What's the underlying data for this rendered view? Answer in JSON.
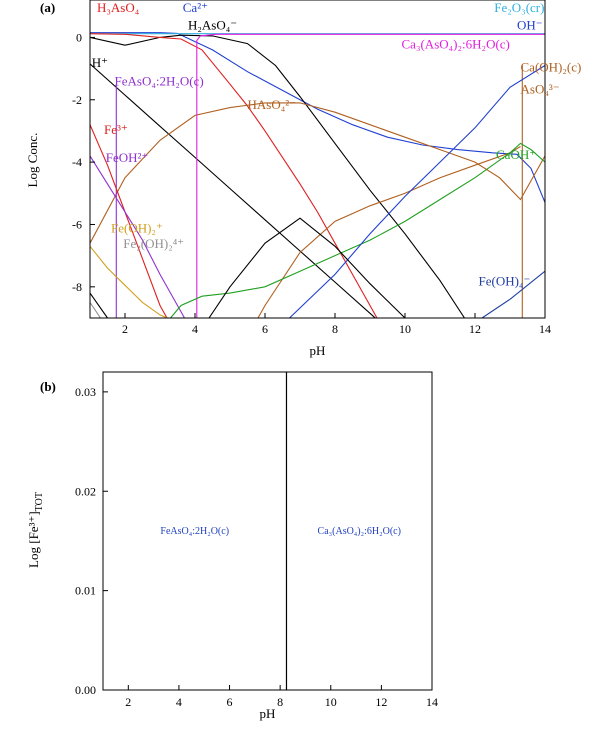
{
  "chart_data": [
    {
      "type": "line",
      "panel_label": "(a)",
      "xlabel": "pH",
      "ylabel": "Log Conc.",
      "xlim": [
        1,
        14
      ],
      "ylim": [
        -9,
        1.2
      ],
      "xticks": [
        "2",
        "4",
        "6",
        "8",
        "10",
        "12",
        "14"
      ],
      "yticks": [
        "0",
        "-2",
        "-4",
        "-6",
        "-8"
      ],
      "species_labels": [
        {
          "text": "H₃AsO₄",
          "color": "#e02020",
          "x": 1.2,
          "y": 0.82
        },
        {
          "text": "Ca²⁺",
          "color": "#2040d0",
          "x": 3.65,
          "y": 0.82
        },
        {
          "text": "H₂AsO₄⁻",
          "color": "#000000",
          "x": 3.8,
          "y": 0.25
        },
        {
          "text": "Fe₂O₃(cr)",
          "color": "#30b0e0",
          "x": 12.55,
          "y": 0.82
        },
        {
          "text": "OH⁻",
          "color": "#2040d0",
          "x": 13.2,
          "y": 0.25
        },
        {
          "text": "H⁺",
          "color": "#000000",
          "x": 1.05,
          "y": -0.95
        },
        {
          "text": "Ca₃(AsO₄)₂:6H₂O(c)",
          "color": "#e020e0",
          "x": 9.9,
          "y": -0.35
        },
        {
          "text": "FeAsO₄:2H₂O(c)",
          "color": "#9030d0",
          "x": 1.7,
          "y": -1.55
        },
        {
          "text": "Ca(OH)₂(c)",
          "color": "#b06020",
          "x": 13.3,
          "y": -1.1
        },
        {
          "text": "AsO₄³⁻",
          "color": "#b06020",
          "x": 13.3,
          "y": -1.8
        },
        {
          "text": "HAsO₄²⁻",
          "color": "#b06020",
          "x": 5.5,
          "y": -2.3
        },
        {
          "text": "Fe³⁺",
          "color": "#e02020",
          "x": 1.4,
          "y": -3.1
        },
        {
          "text": "CaOH⁺",
          "color": "#20a020",
          "x": 12.6,
          "y": -3.9
        },
        {
          "text": "FeOH²⁺",
          "color": "#9030d0",
          "x": 1.45,
          "y": -4.0
        },
        {
          "text": "Fe(OH)₂⁺",
          "color": "#d0a020",
          "x": 1.6,
          "y": -6.25
        },
        {
          "text": "Fe₂(OH)₂⁴⁺",
          "color": "#909090",
          "x": 1.95,
          "y": -6.75
        },
        {
          "text": "Fe(OH)₄⁻",
          "color": "#2040a0",
          "x": 12.1,
          "y": -7.95
        }
      ],
      "series": [
        {
          "color": "#2040d0",
          "points": [
            [
              1,
              0.15
            ],
            [
              2,
              0.15
            ],
            [
              3,
              0.15
            ],
            [
              3.5,
              0.13
            ],
            [
              4.5,
              -0.4
            ],
            [
              5.5,
              -1.1
            ],
            [
              6.5,
              -1.7
            ],
            [
              7.5,
              -2.3
            ],
            [
              8.5,
              -2.8
            ],
            [
              9.5,
              -3.2
            ],
            [
              10.5,
              -3.45
            ],
            [
              11.5,
              -3.6
            ],
            [
              12.5,
              -3.7
            ],
            [
              13.2,
              -3.75
            ],
            [
              13.6,
              -4.2
            ],
            [
              14,
              -5.3
            ]
          ]
        },
        {
          "color": "#30b0e0",
          "points": [
            [
              1,
              0.12
            ],
            [
              14,
              0.12
            ]
          ]
        },
        {
          "color": "#000000",
          "points": [
            [
              1,
              -0.85
            ],
            [
              2,
              -1.85
            ],
            [
              3,
              -2.85
            ],
            [
              4,
              -3.85
            ],
            [
              5,
              -4.85
            ],
            [
              6,
              -5.85
            ],
            [
              7,
              -6.85
            ],
            [
              8,
              -7.85
            ],
            [
              9,
              -8.85
            ],
            [
              9.15,
              -9
            ]
          ]
        },
        {
          "color": "#000000",
          "points": [
            [
              1,
              0.0
            ],
            [
              2,
              -0.25
            ],
            [
              3,
              0.0
            ],
            [
              3.6,
              0.07
            ],
            [
              4.5,
              0.05
            ],
            [
              5.5,
              -0.2
            ],
            [
              6.3,
              -0.9
            ],
            [
              7,
              -1.9
            ],
            [
              8,
              -3.4
            ],
            [
              9,
              -4.9
            ],
            [
              10,
              -6.3
            ],
            [
              11,
              -7.8
            ],
            [
              11.7,
              -9
            ]
          ]
        },
        {
          "color": "#e02020",
          "points": [
            [
              1,
              0.12
            ],
            [
              2,
              0.1
            ],
            [
              3,
              0.0
            ],
            [
              3.6,
              -0.05
            ],
            [
              4.2,
              -0.4
            ],
            [
              5,
              -1.5
            ],
            [
              5.5,
              -2.2
            ],
            [
              6,
              -3.0
            ],
            [
              7,
              -4.7
            ],
            [
              7.5,
              -5.6
            ],
            [
              8,
              -6.6
            ],
            [
              9,
              -8.6
            ],
            [
              9.2,
              -9
            ]
          ]
        },
        {
          "color": "#b06020",
          "points": [
            [
              1,
              -6.6
            ],
            [
              2,
              -4.5
            ],
            [
              3,
              -3.3
            ],
            [
              4,
              -2.5
            ],
            [
              5,
              -2.25
            ],
            [
              6,
              -2.1
            ],
            [
              7,
              -2.1
            ],
            [
              8,
              -2.4
            ],
            [
              9,
              -2.8
            ],
            [
              10,
              -3.2
            ],
            [
              11,
              -3.6
            ],
            [
              12,
              -4.0
            ],
            [
              12.7,
              -4.5
            ],
            [
              13.3,
              -5.2
            ],
            [
              14,
              -3.8
            ]
          ]
        },
        {
          "color": "#b06020",
          "points": [
            [
              5.8,
              -9
            ],
            [
              6,
              -8.6
            ],
            [
              7,
              -6.9
            ],
            [
              8,
              -5.9
            ],
            [
              9,
              -5.4
            ],
            [
              10,
              -5.0
            ],
            [
              11,
              -4.5
            ],
            [
              12,
              -4.1
            ],
            [
              13,
              -3.7
            ],
            [
              13.3,
              -3.5
            ]
          ]
        },
        {
          "color": "#e020e0",
          "points": [
            [
              4.05,
              -9
            ],
            [
              4.05,
              -0.1
            ],
            [
              4.15,
              0.05
            ],
            [
              4.6,
              0.1
            ],
            [
              14,
              0.1
            ]
          ]
        },
        {
          "color": "#9030d0",
          "points": [
            [
              1.75,
              -9
            ],
            [
              1.75,
              -1.5
            ]
          ]
        },
        {
          "color": "#b06020",
          "points": [
            [
              13.35,
              -9
            ],
            [
              13.35,
              -3.5
            ],
            [
              13.35,
              -0.9
            ]
          ]
        },
        {
          "color": "#e02020",
          "points": [
            [
              1,
              -2.8
            ],
            [
              1.5,
              -4.1
            ],
            [
              2,
              -5.6
            ],
            [
              2.5,
              -7.1
            ],
            [
              3.0,
              -8.6
            ],
            [
              3.2,
              -9
            ]
          ]
        },
        {
          "color": "#9030d0",
          "points": [
            [
              1,
              -3.8
            ],
            [
              1.5,
              -4.7
            ],
            [
              2,
              -5.6
            ],
            [
              2.5,
              -6.5
            ],
            [
              3,
              -7.6
            ],
            [
              3.5,
              -8.6
            ],
            [
              3.7,
              -9
            ]
          ]
        },
        {
          "color": "#d0a020",
          "points": [
            [
              1,
              -6.7
            ],
            [
              1.5,
              -7.4
            ],
            [
              2,
              -7.95
            ],
            [
              2.5,
              -8.5
            ],
            [
              3,
              -8.9
            ],
            [
              3.2,
              -9
            ]
          ]
        },
        {
          "color": "#909090",
          "points": [
            [
              1,
              -8.5
            ],
            [
              1.3,
              -9
            ]
          ]
        },
        {
          "color": "#20a020",
          "points": [
            [
              3.3,
              -9
            ],
            [
              3.6,
              -8.6
            ],
            [
              4.2,
              -8.3
            ],
            [
              5,
              -8.2
            ],
            [
              6,
              -8.0
            ],
            [
              7,
              -7.5
            ],
            [
              8,
              -7.0
            ],
            [
              9,
              -6.5
            ],
            [
              10,
              -5.9
            ],
            [
              11,
              -5.2
            ],
            [
              12,
              -4.5
            ],
            [
              13,
              -3.7
            ],
            [
              13.3,
              -3.4
            ],
            [
              13.6,
              -3.6
            ],
            [
              14,
              -4.0
            ]
          ]
        },
        {
          "color": "#2040a0",
          "points": [
            [
              12.2,
              -9
            ],
            [
              13,
              -8.4
            ],
            [
              14,
              -7.5
            ]
          ]
        },
        {
          "color": "#2040d0",
          "points": [
            [
              6.7,
              -9
            ],
            [
              8,
              -7.6
            ],
            [
              9,
              -6.3
            ],
            [
              10,
              -5.1
            ],
            [
              11,
              -4.0
            ],
            [
              12,
              -2.9
            ],
            [
              13,
              -1.6
            ],
            [
              14,
              -0.9
            ]
          ]
        },
        {
          "color": "#000000",
          "points": [
            [
              1,
              -8.2
            ],
            [
              1.5,
              -9
            ]
          ]
        },
        {
          "color": "#000000",
          "points": [
            [
              4.4,
              -9
            ],
            [
              5,
              -8.0
            ],
            [
              6,
              -6.6
            ],
            [
              7,
              -5.8
            ],
            [
              8,
              -6.7
            ],
            [
              9,
              -7.9
            ],
            [
              10,
              -9
            ]
          ]
        }
      ]
    },
    {
      "type": "line",
      "panel_label": "(b)",
      "xlabel": "pH",
      "ylabel": "Log [Fe³⁺]TOT",
      "xlim": [
        1,
        14
      ],
      "ylim": [
        0,
        0.032
      ],
      "xticks": [
        "2",
        "4",
        "6",
        "8",
        "10",
        "12",
        "14"
      ],
      "yticks": [
        "0.00",
        "0.01",
        "0.02",
        "0.03"
      ],
      "boundary_x": 8.25,
      "regions": [
        {
          "text": "FeAsO₄:2H₂O(c)",
          "color": "#2040c0"
        },
        {
          "text": "Ca₃(AsO₄)₂:6H₂O(c)",
          "color": "#2040c0"
        }
      ]
    }
  ]
}
